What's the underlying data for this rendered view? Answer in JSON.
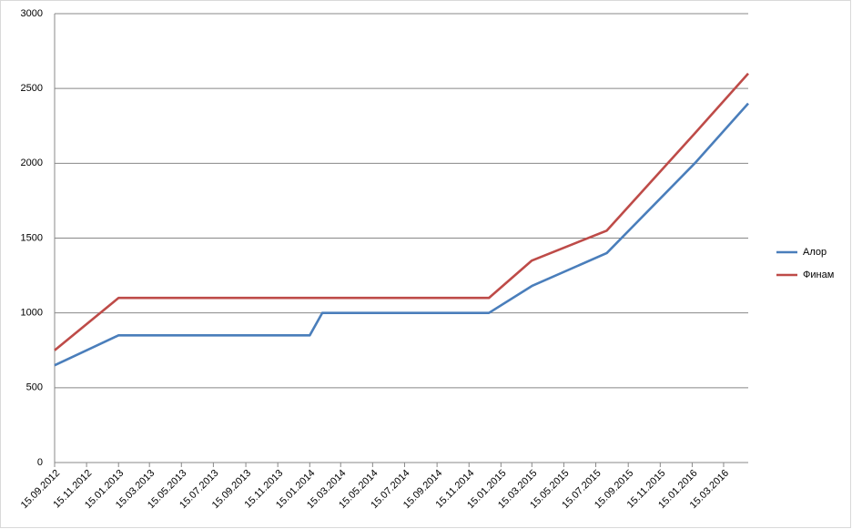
{
  "chart_data": {
    "type": "line",
    "x": [
      "15.09.2012",
      "15.01.2013",
      "15.01.2014",
      "08.02.2014",
      "23.12.2014",
      "15.03.2015",
      "05.08.2015",
      "20.01.2016",
      "01.05.2016"
    ],
    "series": [
      {
        "name": "Алор",
        "color": "#4a7ebb",
        "values": [
          650,
          850,
          850,
          1000,
          1000,
          1180,
          1400,
          2000,
          2400
        ]
      },
      {
        "name": "Финам",
        "color": "#be4b48",
        "values": [
          750,
          1100,
          1100,
          1100,
          1100,
          1350,
          1550,
          2200,
          2600
        ]
      }
    ],
    "xlim": [
      "15.09.2012",
      "01.05.2016"
    ],
    "xticks": [
      "15.09.2012",
      "15.11.2012",
      "15.01.2013",
      "15.03.2013",
      "15.05.2013",
      "15.07.2013",
      "15.09.2013",
      "15.11.2013",
      "15.01.2014",
      "15.03.2014",
      "15.05.2014",
      "15.07.2014",
      "15.09.2014",
      "15.11.2014",
      "15.01.2015",
      "15.03.2015",
      "15.05.2015",
      "15.07.2015",
      "15.09.2015",
      "15.11.2015",
      "15.01.2016",
      "15.03.2016"
    ],
    "ylim": [
      0,
      3000
    ],
    "yticks": [
      0,
      500,
      1000,
      1500,
      2000,
      2500,
      3000
    ],
    "grid": true,
    "legend": "right"
  }
}
